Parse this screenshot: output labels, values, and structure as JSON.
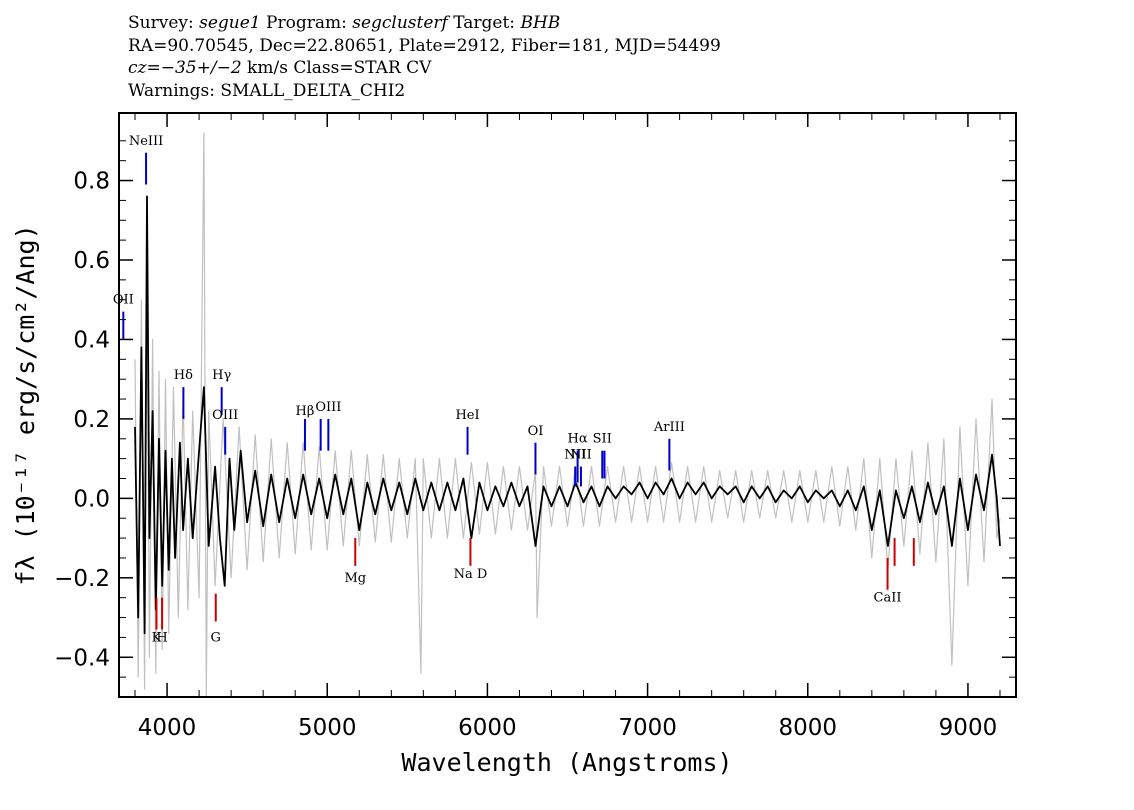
{
  "header": {
    "survey_label": "Survey:",
    "survey": "segue1",
    "program_label": "Program:",
    "program": "segclusterf",
    "target_label": "Target:",
    "target": "BHB",
    "line2": "RA=90.70545, Dec=22.80651, Plate=2912, Fiber=181, MJD=54499",
    "cz_label": "cz=",
    "cz_value": "−35+/−2",
    "cz_rest": " km/s Class=STAR CV",
    "warnings": "Warnings: SMALL_DELTA_CHI2"
  },
  "chart_data": {
    "type": "line",
    "xlabel": "Wavelength (Angstroms)",
    "ylabel": "fλ (10⁻¹⁷ erg/s/cm²/Ang)",
    "xlim": [
      3700,
      9300
    ],
    "ylim": [
      -0.5,
      0.97
    ],
    "xticks": [
      4000,
      5000,
      6000,
      7000,
      8000,
      9000
    ],
    "yticks": [
      -0.4,
      -0.2,
      0.0,
      0.2,
      0.4,
      0.6,
      0.8
    ],
    "ytick_labels": [
      "−0.4",
      "−0.2",
      "0.0",
      "0.2",
      "0.4",
      "0.6",
      "0.8"
    ],
    "grid": false,
    "series": [
      {
        "role": "flux",
        "color": "#000000",
        "points": [
          [
            3800,
            0.18
          ],
          [
            3820,
            -0.3
          ],
          [
            3840,
            0.38
          ],
          [
            3860,
            -0.34
          ],
          [
            3875,
            0.76
          ],
          [
            3890,
            -0.1
          ],
          [
            3910,
            0.22
          ],
          [
            3930,
            -0.28
          ],
          [
            3950,
            0.15
          ],
          [
            3970,
            -0.22
          ],
          [
            3990,
            0.12
          ],
          [
            4010,
            -0.18
          ],
          [
            4030,
            0.1
          ],
          [
            4050,
            -0.15
          ],
          [
            4080,
            0.14
          ],
          [
            4100,
            -0.08
          ],
          [
            4130,
            0.1
          ],
          [
            4160,
            -0.1
          ],
          [
            4200,
            0.12
          ],
          [
            4230,
            0.28
          ],
          [
            4260,
            -0.12
          ],
          [
            4300,
            0.08
          ],
          [
            4330,
            -0.1
          ],
          [
            4360,
            -0.22
          ],
          [
            4390,
            0.1
          ],
          [
            4420,
            -0.08
          ],
          [
            4460,
            0.12
          ],
          [
            4500,
            -0.06
          ],
          [
            4550,
            0.07
          ],
          [
            4600,
            -0.07
          ],
          [
            4650,
            0.06
          ],
          [
            4700,
            -0.06
          ],
          [
            4750,
            0.05
          ],
          [
            4800,
            -0.05
          ],
          [
            4850,
            0.06
          ],
          [
            4900,
            -0.04
          ],
          [
            4950,
            0.05
          ],
          [
            5000,
            -0.05
          ],
          [
            5050,
            0.06
          ],
          [
            5100,
            -0.04
          ],
          [
            5150,
            0.05
          ],
          [
            5200,
            -0.08
          ],
          [
            5250,
            0.04
          ],
          [
            5300,
            -0.04
          ],
          [
            5350,
            0.05
          ],
          [
            5400,
            -0.03
          ],
          [
            5450,
            0.04
          ],
          [
            5500,
            -0.04
          ],
          [
            5550,
            0.05
          ],
          [
            5600,
            -0.03
          ],
          [
            5650,
            0.04
          ],
          [
            5700,
            -0.03
          ],
          [
            5750,
            0.04
          ],
          [
            5800,
            -0.03
          ],
          [
            5850,
            0.05
          ],
          [
            5900,
            -0.1
          ],
          [
            5950,
            0.04
          ],
          [
            6000,
            -0.03
          ],
          [
            6050,
            0.03
          ],
          [
            6100,
            -0.02
          ],
          [
            6150,
            0.04
          ],
          [
            6200,
            -0.02
          ],
          [
            6250,
            0.03
          ],
          [
            6300,
            -0.12
          ],
          [
            6350,
            0.03
          ],
          [
            6400,
            -0.02
          ],
          [
            6450,
            0.03
          ],
          [
            6500,
            -0.02
          ],
          [
            6550,
            0.04
          ],
          [
            6600,
            -0.01
          ],
          [
            6650,
            0.03
          ],
          [
            6700,
            -0.02
          ],
          [
            6750,
            0.03
          ],
          [
            6800,
            0.0
          ],
          [
            6850,
            0.03
          ],
          [
            6900,
            0.01
          ],
          [
            6950,
            0.04
          ],
          [
            7000,
            0.0
          ],
          [
            7050,
            0.04
          ],
          [
            7100,
            0.01
          ],
          [
            7150,
            0.05
          ],
          [
            7200,
            0.0
          ],
          [
            7250,
            0.04
          ],
          [
            7300,
            0.01
          ],
          [
            7350,
            0.04
          ],
          [
            7400,
            0.0
          ],
          [
            7450,
            0.03
          ],
          [
            7500,
            0.01
          ],
          [
            7550,
            0.03
          ],
          [
            7600,
            -0.01
          ],
          [
            7650,
            0.03
          ],
          [
            7700,
            0.0
          ],
          [
            7750,
            0.03
          ],
          [
            7800,
            -0.01
          ],
          [
            7850,
            0.02
          ],
          [
            7900,
            0.0
          ],
          [
            7950,
            0.03
          ],
          [
            8000,
            -0.01
          ],
          [
            8050,
            0.02
          ],
          [
            8100,
            0.0
          ],
          [
            8150,
            0.02
          ],
          [
            8200,
            -0.02
          ],
          [
            8250,
            0.02
          ],
          [
            8300,
            -0.03
          ],
          [
            8350,
            0.03
          ],
          [
            8400,
            -0.08
          ],
          [
            8450,
            0.02
          ],
          [
            8500,
            -0.12
          ],
          [
            8550,
            0.02
          ],
          [
            8600,
            -0.05
          ],
          [
            8650,
            0.03
          ],
          [
            8700,
            -0.06
          ],
          [
            8750,
            0.04
          ],
          [
            8800,
            -0.04
          ],
          [
            8850,
            0.03
          ],
          [
            8900,
            -0.12
          ],
          [
            8950,
            0.05
          ],
          [
            9000,
            -0.08
          ],
          [
            9050,
            0.06
          ],
          [
            9100,
            -0.03
          ],
          [
            9150,
            0.11
          ],
          [
            9180,
            0.0
          ],
          [
            9200,
            -0.12
          ]
        ]
      },
      {
        "role": "error",
        "color": "#c0c0c0",
        "points": [
          [
            3800,
            0.35
          ],
          [
            3820,
            -0.45
          ],
          [
            3840,
            0.5
          ],
          [
            3860,
            -0.48
          ],
          [
            3875,
            0.6
          ],
          [
            3890,
            -0.4
          ],
          [
            3910,
            0.4
          ],
          [
            3930,
            -0.44
          ],
          [
            3950,
            0.32
          ],
          [
            3970,
            -0.38
          ],
          [
            3990,
            0.3
          ],
          [
            4010,
            -0.34
          ],
          [
            4040,
            0.28
          ],
          [
            4070,
            -0.3
          ],
          [
            4100,
            0.25
          ],
          [
            4130,
            -0.28
          ],
          [
            4160,
            0.22
          ],
          [
            4200,
            -0.25
          ],
          [
            4230,
            0.92
          ],
          [
            4245,
            -0.5
          ],
          [
            4260,
            0.22
          ],
          [
            4300,
            -0.22
          ],
          [
            4350,
            0.2
          ],
          [
            4400,
            -0.2
          ],
          [
            4450,
            0.18
          ],
          [
            4500,
            -0.18
          ],
          [
            4550,
            0.16
          ],
          [
            4600,
            -0.16
          ],
          [
            4650,
            0.15
          ],
          [
            4700,
            -0.15
          ],
          [
            4750,
            0.14
          ],
          [
            4800,
            -0.14
          ],
          [
            4850,
            0.14
          ],
          [
            4900,
            -0.13
          ],
          [
            4950,
            0.13
          ],
          [
            5000,
            -0.13
          ],
          [
            5050,
            0.12
          ],
          [
            5100,
            -0.12
          ],
          [
            5150,
            0.12
          ],
          [
            5200,
            -0.12
          ],
          [
            5250,
            0.11
          ],
          [
            5300,
            -0.11
          ],
          [
            5350,
            0.11
          ],
          [
            5400,
            -0.11
          ],
          [
            5450,
            0.1
          ],
          [
            5500,
            -0.1
          ],
          [
            5550,
            0.1
          ],
          [
            5585,
            -0.44
          ],
          [
            5600,
            0.1
          ],
          [
            5650,
            -0.1
          ],
          [
            5700,
            0.1
          ],
          [
            5750,
            -0.1
          ],
          [
            5800,
            0.1
          ],
          [
            5850,
            -0.1
          ],
          [
            5900,
            0.09
          ],
          [
            5950,
            -0.09
          ],
          [
            6000,
            0.09
          ],
          [
            6050,
            -0.09
          ],
          [
            6100,
            0.08
          ],
          [
            6150,
            -0.08
          ],
          [
            6200,
            0.08
          ],
          [
            6250,
            -0.08
          ],
          [
            6300,
            0.07
          ],
          [
            6310,
            -0.3
          ],
          [
            6350,
            0.08
          ],
          [
            6400,
            -0.07
          ],
          [
            6450,
            0.08
          ],
          [
            6500,
            -0.07
          ],
          [
            6550,
            0.08
          ],
          [
            6600,
            -0.07
          ],
          [
            6650,
            0.08
          ],
          [
            6700,
            -0.07
          ],
          [
            6750,
            0.08
          ],
          [
            6800,
            -0.06
          ],
          [
            6850,
            0.08
          ],
          [
            6900,
            -0.06
          ],
          [
            6950,
            0.08
          ],
          [
            7000,
            -0.06
          ],
          [
            7050,
            0.08
          ],
          [
            7100,
            -0.06
          ],
          [
            7150,
            0.09
          ],
          [
            7200,
            -0.06
          ],
          [
            7250,
            0.08
          ],
          [
            7300,
            -0.06
          ],
          [
            7350,
            0.08
          ],
          [
            7400,
            -0.06
          ],
          [
            7450,
            0.07
          ],
          [
            7500,
            -0.05
          ],
          [
            7550,
            0.07
          ],
          [
            7600,
            -0.06
          ],
          [
            7650,
            0.07
          ],
          [
            7700,
            -0.05
          ],
          [
            7750,
            0.07
          ],
          [
            7800,
            -0.05
          ],
          [
            7850,
            0.07
          ],
          [
            7900,
            -0.06
          ],
          [
            7950,
            0.07
          ],
          [
            8000,
            -0.06
          ],
          [
            8050,
            0.07
          ],
          [
            8100,
            -0.06
          ],
          [
            8150,
            0.08
          ],
          [
            8200,
            -0.07
          ],
          [
            8250,
            0.08
          ],
          [
            8300,
            -0.08
          ],
          [
            8350,
            0.1
          ],
          [
            8400,
            -0.15
          ],
          [
            8450,
            0.1
          ],
          [
            8500,
            -0.18
          ],
          [
            8550,
            0.1
          ],
          [
            8600,
            -0.12
          ],
          [
            8650,
            0.12
          ],
          [
            8700,
            -0.14
          ],
          [
            8750,
            0.14
          ],
          [
            8800,
            -0.16
          ],
          [
            8850,
            0.15
          ],
          [
            8900,
            -0.42
          ],
          [
            8950,
            0.18
          ],
          [
            9000,
            -0.22
          ],
          [
            9050,
            0.2
          ],
          [
            9100,
            -0.16
          ],
          [
            9150,
            0.25
          ],
          [
            9180,
            -0.1
          ],
          [
            9200,
            -0.05
          ]
        ]
      }
    ],
    "emission_lines": [
      {
        "label": "OII",
        "x": 3727,
        "y1": 0.4,
        "y2": 0.47,
        "label_y": 0.49,
        "color": "#0000cc"
      },
      {
        "label": "NeIII",
        "x": 3869,
        "y1": 0.79,
        "y2": 0.87,
        "label_y": 0.89,
        "color": "#0000cc"
      },
      {
        "label": "Hδ",
        "x": 4102,
        "y1": 0.2,
        "y2": 0.28,
        "label_y": 0.3,
        "color": "#0000cc"
      },
      {
        "label": "Hγ",
        "x": 4341,
        "y1": 0.21,
        "y2": 0.28,
        "label_y": 0.3,
        "color": "#0000cc"
      },
      {
        "label": "OIII",
        "x": 4363,
        "y1": 0.11,
        "y2": 0.18,
        "label_y": 0.2,
        "color": "#0000cc"
      },
      {
        "label": "Hβ",
        "x": 4861,
        "y1": 0.12,
        "y2": 0.2,
        "label_y": 0.21,
        "color": "#0000cc"
      },
      {
        "label": "",
        "x": 4959,
        "y1": 0.12,
        "y2": 0.2,
        "label_y": 0.21,
        "color": "#0000cc"
      },
      {
        "label": "OIII",
        "x": 5007,
        "y1": 0.12,
        "y2": 0.2,
        "label_y": 0.22,
        "color": "#0000cc"
      },
      {
        "label": "HeI",
        "x": 5876,
        "y1": 0.11,
        "y2": 0.18,
        "label_y": 0.2,
        "color": "#0000cc"
      },
      {
        "label": "OI",
        "x": 6300,
        "y1": 0.06,
        "y2": 0.14,
        "label_y": 0.16,
        "color": "#0000cc"
      },
      {
        "label": "NII",
        "x": 6548,
        "y1": 0.03,
        "y2": 0.08,
        "label_y": 0.1,
        "color": "#0000cc"
      },
      {
        "label": "Hα",
        "x": 6563,
        "y1": 0.04,
        "y2": 0.12,
        "label_y": 0.14,
        "color": "#0000cc"
      },
      {
        "label": "NII",
        "x": 6584,
        "y1": 0.03,
        "y2": 0.08,
        "label_y": 0.1,
        "color": "#0000cc"
      },
      {
        "label": "SII",
        "x": 6717,
        "y1": 0.05,
        "y2": 0.12,
        "label_y": 0.14,
        "color": "#0000cc"
      },
      {
        "label": "",
        "x": 6731,
        "y1": 0.05,
        "y2": 0.12,
        "label_y": 0.14,
        "color": "#0000cc"
      },
      {
        "label": "ArIII",
        "x": 7136,
        "y1": 0.07,
        "y2": 0.15,
        "label_y": 0.17,
        "color": "#0000cc"
      }
    ],
    "absorption_lines": [
      {
        "label": "K",
        "x": 3934,
        "y1": -0.25,
        "y2": -0.33,
        "label_y": -0.36,
        "color": "#cc0000"
      },
      {
        "label": "H",
        "x": 3969,
        "y1": -0.25,
        "y2": -0.33,
        "label_y": -0.36,
        "color": "#cc0000"
      },
      {
        "label": "G",
        "x": 4304,
        "y1": -0.24,
        "y2": -0.31,
        "label_y": -0.36,
        "color": "#cc0000"
      },
      {
        "label": "Mg",
        "x": 5175,
        "y1": -0.1,
        "y2": -0.17,
        "label_y": -0.21,
        "color": "#cc0000"
      },
      {
        "label": "Na D",
        "x": 5894,
        "y1": -0.1,
        "y2": -0.17,
        "label_y": -0.2,
        "color": "#cc0000"
      },
      {
        "label": "CaII",
        "x": 8498,
        "y1": -0.15,
        "y2": -0.23,
        "label_y": -0.26,
        "color": "#cc0000"
      },
      {
        "label": "",
        "x": 8542,
        "y1": -0.1,
        "y2": -0.17,
        "label_y": -0.26,
        "color": "#cc0000"
      },
      {
        "label": "",
        "x": 8662,
        "y1": -0.1,
        "y2": -0.17,
        "label_y": -0.26,
        "color": "#cc0000"
      }
    ]
  }
}
